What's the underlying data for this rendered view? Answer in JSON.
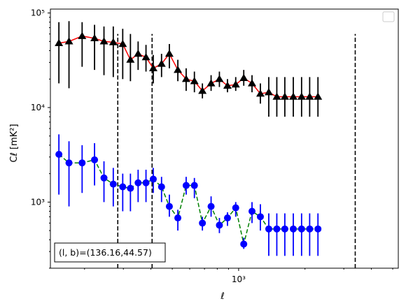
{
  "chart_data": {
    "type": "scatter",
    "xscale": "log",
    "yscale": "log",
    "xlim": [
      140,
      5300
    ],
    "ylim": [
      200,
      110000
    ],
    "xlabel": "ℓ",
    "ylabel": "Cℓ  [mK²]",
    "x_tick_labels": [
      {
        "value": 1000,
        "label": "10³"
      }
    ],
    "y_tick_labels": [
      {
        "value": 1000,
        "label": "10³"
      },
      {
        "value": 10000,
        "label": "10⁴"
      },
      {
        "value": 100000,
        "label": "10⁵"
      }
    ],
    "legend": "top-right (empty)",
    "annotation": "(l, b)=(136.16,44.57)",
    "vlines": {
      "x": [
        283,
        405,
        3380
      ],
      "ymax": 60000,
      "style": "dashed",
      "color": "#000000"
    },
    "series": [
      {
        "marker": "triangle",
        "color": "#000000",
        "line_color": "#ff0000",
        "line_style": "solid",
        "x": [
          153,
          170,
          195,
          222,
          245,
          270,
          298,
          323,
          350,
          380,
          410,
          447,
          485,
          530,
          578,
          630,
          685,
          750,
          818,
          890,
          970,
          1055,
          1150,
          1255,
          1370,
          1490,
          1620,
          1770,
          1930,
          2100,
          2290
        ],
        "y": [
          48000,
          50000,
          57000,
          54000,
          50000,
          49000,
          47000,
          32000,
          37000,
          34000,
          26000,
          29000,
          37000,
          25000,
          20000,
          19000,
          15000,
          18000,
          20000,
          17000,
          17500,
          20500,
          18000,
          14000,
          14500,
          13000,
          13000,
          13000,
          13000,
          13000,
          13000
        ],
        "yerr_low": [
          18000,
          16000,
          27000,
          25000,
          22000,
          21000,
          20000,
          19000,
          25000,
          24000,
          18000,
          21000,
          26000,
          19000,
          15000,
          14500,
          12500,
          15000,
          16500,
          14500,
          15000,
          17000,
          14500,
          11000,
          8000,
          8000,
          8000,
          8000,
          8000,
          8000,
          8000
        ],
        "yerr_high": [
          80000,
          82000,
          80000,
          75000,
          72000,
          72000,
          68000,
          60000,
          50000,
          46000,
          36000,
          37000,
          47000,
          32000,
          26000,
          24000,
          18000,
          22000,
          24000,
          20000,
          21000,
          25000,
          22000,
          18000,
          21000,
          21000,
          21000,
          21000,
          21000,
          21000,
          21000
        ]
      },
      {
        "marker": "circle",
        "color": "#0000ff",
        "line_color": "#008000",
        "line_style": "dashed",
        "x": [
          153,
          170,
          195,
          222,
          245,
          270,
          298,
          323,
          350,
          380,
          410,
          447,
          485,
          530,
          578,
          630,
          685,
          750,
          818,
          890,
          970,
          1055,
          1150,
          1255,
          1370,
          1490,
          1620,
          1770,
          1930,
          2100,
          2290
        ],
        "y": [
          3200,
          2600,
          2600,
          2800,
          1800,
          1550,
          1450,
          1400,
          1600,
          1600,
          1750,
          1450,
          900,
          680,
          1500,
          1500,
          600,
          900,
          570,
          680,
          870,
          360,
          800,
          700,
          520,
          520,
          520,
          520,
          520,
          520,
          520
        ],
        "yerr_low": [
          1200,
          900,
          1250,
          1500,
          1000,
          900,
          800,
          800,
          1000,
          1000,
          1250,
          1000,
          700,
          500,
          1200,
          1100,
          500,
          700,
          470,
          560,
          700,
          320,
          600,
          500,
          270,
          270,
          270,
          270,
          270,
          270,
          270
        ],
        "yerr_high": [
          5200,
          4400,
          4000,
          4200,
          2700,
          2300,
          2000,
          2000,
          2200,
          2200,
          2300,
          1850,
          1200,
          830,
          1850,
          1800,
          700,
          1150,
          680,
          780,
          1000,
          420,
          1000,
          950,
          760,
          760,
          760,
          760,
          760,
          760,
          760
        ]
      }
    ]
  }
}
